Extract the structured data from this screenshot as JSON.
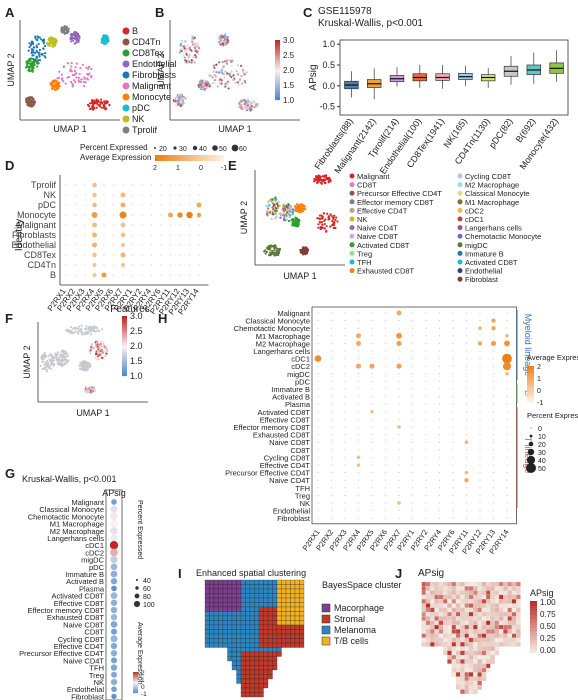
{
  "panels": {
    "A": {
      "letter": "A",
      "xlabel": "UMAP 1",
      "ylabel": "UMAP 2",
      "legend": [
        {
          "label": "B",
          "color": "#d62728"
        },
        {
          "label": "CD4Tn",
          "color": "#8c564b"
        },
        {
          "label": "CD8Tex",
          "color": "#2ca02c"
        },
        {
          "label": "Endothelial",
          "color": "#9467bd"
        },
        {
          "label": "Fibroblasts",
          "color": "#1f77b4"
        },
        {
          "label": "Malignant",
          "color": "#e377c2"
        },
        {
          "label": "Monocyte",
          "color": "#ff7f0e"
        },
        {
          "label": "pDC",
          "color": "#17becf"
        },
        {
          "label": "NK",
          "color": "#bcbd22"
        },
        {
          "label": "Tprolif",
          "color": "#7f7f7f"
        }
      ]
    },
    "B": {
      "letter": "B",
      "xlabel": "UMAP 1",
      "ylabel": "UMAP 2",
      "scale_ticks": [
        "3.0",
        "2.5",
        "2.0",
        "1.5",
        "1.0"
      ]
    },
    "C": {
      "letter": "C",
      "title": "GSE115978",
      "subtitle": "Kruskal-Wallis, p<0.001",
      "ylabel": "APsig",
      "ytick_labels": [
        "1.0",
        "0.5",
        "0.0",
        "-0.5"
      ]
    },
    "D": {
      "letter": "D",
      "ylabel": "Identity",
      "xlabel": "Features",
      "size_title": "Percent Expressed",
      "size_ticks": [
        "20",
        "30",
        "40",
        "50",
        "60"
      ],
      "color_title": "Average Expression",
      "color_ticks": [
        "2",
        "1",
        "0",
        "-1"
      ],
      "rows": [
        "Tprolif",
        "NK",
        "pDC",
        "Monocyte",
        "Malignant",
        "Fibroblasts",
        "Endothelial",
        "CD8Tex",
        "CD4Tn",
        "B"
      ],
      "cols": [
        "P2RX1",
        "P2RX2",
        "P2RX3",
        "P2RX4",
        "P2RX5",
        "P2RX6",
        "P2RX7",
        "P2RY1",
        "P2RY2",
        "P2RY4",
        "P2RY6",
        "P2RY11",
        "P2RY12",
        "P2RY13",
        "P2RY14"
      ]
    },
    "E": {
      "letter": "E",
      "xlabel": "UMAP 1",
      "ylabel": "UMAP 2",
      "legend_left": [
        {
          "label": "Malignant",
          "color": "#d62728"
        },
        {
          "label": "CD8T",
          "color": "#e377c2"
        },
        {
          "label": "Precursor Effective CD4T",
          "color": "#8c564b"
        },
        {
          "label": "Effector memory CD8T",
          "color": "#7f7f7f"
        },
        {
          "label": "Effective CD4T",
          "color": "#c49c94"
        },
        {
          "label": "NK",
          "color": "#bcbd22"
        },
        {
          "label": "Naive CD4T",
          "color": "#9467bd"
        },
        {
          "label": "Naive CD8T",
          "color": "#c5b0d5"
        },
        {
          "label": "Activated CD8T",
          "color": "#2ca02c"
        },
        {
          "label": "Treg",
          "color": "#98df8a"
        },
        {
          "label": "TFH",
          "color": "#17becf"
        },
        {
          "label": "Exhausted CD8T",
          "color": "#ff7f0e"
        }
      ],
      "legend_right": [
        {
          "label": "Cycling CD8T",
          "color": "#aec7e8"
        },
        {
          "label": "M2 Macrophage",
          "color": "#9edae5"
        },
        {
          "label": "Classical Monocyte",
          "color": "#dbdb8d"
        },
        {
          "label": "M1 Macrophage",
          "color": "#8c6d31"
        },
        {
          "label": "cDC2",
          "color": "#e7ba52"
        },
        {
          "label": "cDC1",
          "color": "#ad494a"
        },
        {
          "label": "Langerhans cells",
          "color": "#a55194"
        },
        {
          "label": "Chemotactic Monocyte",
          "color": "#6b6ecf"
        },
        {
          "label": "migDC",
          "color": "#637939"
        },
        {
          "label": "Immature B",
          "color": "#1f77b4"
        },
        {
          "label": "Activated CD8T",
          "color": "#17becf"
        },
        {
          "label": "Endothelial",
          "color": "#393b79"
        },
        {
          "label": "Fibroblast",
          "color": "#843c39"
        }
      ]
    },
    "F": {
      "letter": "F",
      "xlabel": "UMAP 1",
      "ylabel": "UMAP 2",
      "scale_ticks": [
        "3.0",
        "2.5",
        "2.0",
        "1.5",
        "1.0"
      ]
    },
    "G": {
      "letter": "G",
      "title": "Kruskal-Wallis, p<0.001",
      "col_label": "APsig",
      "size_title": "Percent Expressed",
      "size_ticks": [
        "40",
        "60",
        "80",
        "100"
      ],
      "color_title": "Average Expression",
      "color_ticks": [
        "2",
        "1",
        "0",
        "-1"
      ]
    },
    "H": {
      "letter": "H",
      "cols": [
        "P2RX1",
        "P2RX2",
        "P2RX3",
        "P2RX4",
        "P2RX5",
        "P2RX6",
        "P2RX7",
        "P2RY1",
        "P2RY2",
        "P2RY4",
        "P2RY6",
        "P2RY11",
        "P2RY12",
        "P2RY13",
        "P2RY14"
      ],
      "group_myeloid": "Myeloid lineage",
      "group_b": "B",
      "group_t": "T lineage",
      "color_title": "Average Expression",
      "color_ticks": [
        "2",
        "1",
        "0",
        "-1"
      ],
      "size_title": "Percent Expressed",
      "size_ticks": [
        "0",
        "10",
        "20",
        "30",
        "40",
        "50"
      ]
    },
    "I": {
      "letter": "I",
      "title": "Enhanced spatial clustering",
      "legend_title": "BayesSpace cluster",
      "legend": [
        {
          "label": "Macorphage",
          "color": "#7b3f8c"
        },
        {
          "label": "Stromal",
          "color": "#c0392b"
        },
        {
          "label": "Melanoma",
          "color": "#2e86c1"
        },
        {
          "label": "T/B cells",
          "color": "#f0b323"
        }
      ]
    },
    "J": {
      "letter": "J",
      "title": "APsig",
      "scale_title": "APsig",
      "scale_ticks": [
        "1.00",
        "0.75",
        "0.50",
        "0.25",
        "0.00"
      ]
    }
  },
  "chart_data": [
    {
      "type": "box",
      "panel": "C",
      "title": "GSE115978",
      "subtitle": "Kruskal-Wallis, p<0.001",
      "ylabel": "APsig",
      "ylim": [
        -0.7,
        1.1
      ],
      "categories": [
        "Fibroblasts(88)",
        "Malignant(2142)",
        "Tprolif(214)",
        "Endothelial(100)",
        "CD8Tex(1941)",
        "NK(165)",
        "CD4Tn(1130)",
        "pDC(82)",
        "B(692)",
        "Monocyte(432)"
      ],
      "colors": [
        "#4a7fb0",
        "#f0a040",
        "#c9a0dc",
        "#e8693e",
        "#f2a7b5",
        "#9ec7e8",
        "#d9e27a",
        "#c8c8c8",
        "#62c6c6",
        "#8cc63f"
      ],
      "median": [
        0.02,
        0.05,
        0.17,
        0.2,
        0.2,
        0.22,
        0.2,
        0.35,
        0.38,
        0.42
      ],
      "q1": [
        -0.07,
        -0.04,
        0.1,
        0.12,
        0.13,
        0.15,
        0.12,
        0.23,
        0.27,
        0.3
      ],
      "q3": [
        0.11,
        0.15,
        0.25,
        0.29,
        0.29,
        0.3,
        0.27,
        0.47,
        0.5,
        0.55
      ],
      "whisker_low": [
        -0.28,
        -0.32,
        -0.02,
        -0.05,
        -0.07,
        0.0,
        -0.05,
        0.03,
        0.05,
        0.1
      ],
      "whisker_high": [
        0.35,
        0.42,
        0.45,
        0.5,
        0.5,
        0.48,
        0.43,
        0.72,
        0.8,
        0.85
      ]
    },
    {
      "type": "dotplot",
      "panel": "D",
      "rows": [
        "Tprolif",
        "NK",
        "pDC",
        "Monocyte",
        "Malignant",
        "Fibroblasts",
        "Endothelial",
        "CD8Tex",
        "CD4Tn",
        "B"
      ],
      "cols": [
        "P2RX1",
        "P2RX2",
        "P2RX3",
        "P2RX4",
        "P2RX5",
        "P2RX6",
        "P2RX7",
        "P2RY1",
        "P2RY2",
        "P2RY4",
        "P2RY6",
        "P2RY11",
        "P2RY12",
        "P2RY13",
        "P2RY14"
      ],
      "dots": [
        {
          "row": "Monocyte",
          "col": "P2RX4",
          "pct": 40,
          "avg": 1.2
        },
        {
          "row": "Monocyte",
          "col": "P2RX7",
          "pct": 50,
          "avg": 1.8
        },
        {
          "row": "Monocyte",
          "col": "P2RY11",
          "pct": 30,
          "avg": 1.0
        },
        {
          "row": "Monocyte",
          "col": "P2RY12",
          "pct": 35,
          "avg": 1.6
        },
        {
          "row": "Monocyte",
          "col": "P2RY13",
          "pct": 45,
          "avg": 2.0
        },
        {
          "row": "Monocyte",
          "col": "P2RY14",
          "pct": 25,
          "avg": 1.2
        },
        {
          "row": "pDC",
          "col": "P2RY14",
          "pct": 30,
          "avg": 1.0
        },
        {
          "row": "pDC",
          "col": "P2RX4",
          "pct": 25,
          "avg": 0.5
        },
        {
          "row": "pDC",
          "col": "P2RX7",
          "pct": 30,
          "avg": 0.8
        },
        {
          "row": "Malignant",
          "col": "P2RX4",
          "pct": 30,
          "avg": 0.4
        },
        {
          "row": "Malignant",
          "col": "P2RX7",
          "pct": 30,
          "avg": 0.3
        },
        {
          "row": "Fibroblasts",
          "col": "P2RX4",
          "pct": 30,
          "avg": 0.6
        },
        {
          "row": "Fibroblasts",
          "col": "P2RX7",
          "pct": 25,
          "avg": 0.4
        },
        {
          "row": "Endothelial",
          "col": "P2RX4",
          "pct": 30,
          "avg": 0.7
        },
        {
          "row": "Endothelial",
          "col": "P2RX7",
          "pct": 20,
          "avg": 0.2
        },
        {
          "row": "CD8Tex",
          "col": "P2RX4",
          "pct": 25,
          "avg": 0.3
        },
        {
          "row": "CD8Tex",
          "col": "P2RX7",
          "pct": 30,
          "avg": 0.6
        },
        {
          "row": "CD4Tn",
          "col": "P2RX7",
          "pct": 20,
          "avg": 0.3
        },
        {
          "row": "CD4Tn",
          "col": "P2RX4",
          "pct": 20,
          "avg": 0.2
        },
        {
          "row": "Tprolif",
          "col": "P2RX4",
          "pct": 25,
          "avg": 0.4
        },
        {
          "row": "NK",
          "col": "P2RX7",
          "pct": 30,
          "avg": 0.5
        },
        {
          "row": "NK",
          "col": "P2RX4",
          "pct": 25,
          "avg": 0.3
        },
        {
          "row": "B",
          "col": "P2RX5",
          "pct": 30,
          "avg": 1.3
        },
        {
          "row": "B",
          "col": "P2RX4",
          "pct": 20,
          "avg": 0.2
        }
      ]
    },
    {
      "type": "dotplot",
      "panel": "G",
      "rows": [
        "Malignant",
        "Classical Monocyte",
        "Chemotactic Monocyte",
        "M1 Macrophage",
        "M2 Macrophage",
        "Langerhans cells",
        "cDC1",
        "cDC2",
        "migDC",
        "pDC",
        "Immature B",
        "Activated B",
        "Plasma",
        "Activated CD8T",
        "Effective CD8T",
        "Effector memory CD8T",
        "Exhausted CD8T",
        "Naive CD8T",
        "CD8T",
        "Cycling CD8T",
        "Effective CD4T",
        "Precursor Effective CD4T",
        "Naive CD4T",
        "TFH",
        "Treg",
        "NK",
        "Endothelial",
        "Fibroblast"
      ],
      "cols": [
        "APsig"
      ],
      "pct": [
        55,
        75,
        80,
        85,
        80,
        75,
        95,
        85,
        75,
        70,
        70,
        65,
        55,
        70,
        65,
        65,
        65,
        70,
        60,
        75,
        65,
        65,
        60,
        65,
        60,
        65,
        55,
        50
      ],
      "avg": [
        -0.6,
        0.3,
        0.4,
        0.5,
        0.3,
        0.4,
        2.0,
        1.0,
        0.0,
        -0.3,
        -0.4,
        -0.5,
        -0.8,
        -0.3,
        -0.4,
        -0.4,
        -0.3,
        -0.5,
        -0.6,
        -0.3,
        -0.5,
        -0.4,
        -0.6,
        -0.5,
        -0.5,
        -0.4,
        -0.6,
        -0.8
      ]
    },
    {
      "type": "dotplot",
      "panel": "H",
      "rows": [
        "Malignant",
        "Classical Monocyte",
        "Chemotactic Monocyte",
        "M1 Macrophage",
        "M2 Macrophage",
        "Langerhans cells",
        "cDC1",
        "cDC2",
        "migDC",
        "pDC",
        "Immature B",
        "Activated B",
        "Plasma",
        "Activated CD8T",
        "Effective CD8T",
        "Effector memory CD8T",
        "Exhausted CD8T",
        "Naive CD8T",
        "CD8T",
        "Cycling CD8T",
        "Effective CD4T",
        "Precursor Effective CD4T",
        "Naive CD4T",
        "TFH",
        "Treg",
        "NK",
        "Endothelial",
        "Fibroblast"
      ],
      "cols": [
        "P2RX1",
        "P2RX2",
        "P2RX3",
        "P2RX4",
        "P2RX5",
        "P2RX6",
        "P2RX7",
        "P2RY1",
        "P2RY2",
        "P2RY4",
        "P2RY6",
        "P2RY11",
        "P2RY12",
        "P2RY13",
        "P2RY14"
      ],
      "dots": [
        {
          "row": "Malignant",
          "col": "P2RX7",
          "pct": 20,
          "avg": 1.0
        },
        {
          "row": "Classical Monocyte",
          "col": "P2RY13",
          "pct": 15,
          "avg": 1.2
        },
        {
          "row": "Chemotactic Monocyte",
          "col": "P2RY13",
          "pct": 15,
          "avg": 1.1
        },
        {
          "row": "Chemotactic Monocyte",
          "col": "P2RY12",
          "pct": 10,
          "avg": 0.9
        },
        {
          "row": "M1 Macrophage",
          "col": "P2RX4",
          "pct": 20,
          "avg": 1.0
        },
        {
          "row": "M1 Macrophage",
          "col": "P2RX7",
          "pct": 25,
          "avg": 1.5
        },
        {
          "row": "M1 Macrophage",
          "col": "P2RY14",
          "pct": 10,
          "avg": 0.7
        },
        {
          "row": "M2 Macrophage",
          "col": "P2RX4",
          "pct": 20,
          "avg": 1.0
        },
        {
          "row": "M2 Macrophage",
          "col": "P2RX7",
          "pct": 20,
          "avg": 1.3
        },
        {
          "row": "M2 Macrophage",
          "col": "P2RY12",
          "pct": 15,
          "avg": 1.2
        },
        {
          "row": "M2 Macrophage",
          "col": "P2RY13",
          "pct": 20,
          "avg": 1.4
        },
        {
          "row": "M2 Macrophage",
          "col": "P2RY14",
          "pct": 25,
          "avg": 1.6
        },
        {
          "row": "cDC1",
          "col": "P2RX1",
          "pct": 30,
          "avg": 1.8
        },
        {
          "row": "cDC1",
          "col": "P2RY14",
          "pct": 50,
          "avg": 2.2
        },
        {
          "row": "cDC2",
          "col": "P2RX4",
          "pct": 20,
          "avg": 1.1
        },
        {
          "row": "cDC2",
          "col": "P2RX5",
          "pct": 20,
          "avg": 1.2
        },
        {
          "row": "cDC2",
          "col": "P2RX7",
          "pct": 20,
          "avg": 1.3
        },
        {
          "row": "cDC2",
          "col": "P2RY14",
          "pct": 40,
          "avg": 1.8
        },
        {
          "row": "migDC",
          "col": "P2RY14",
          "pct": 10,
          "avg": 0.6
        },
        {
          "row": "Activated CD8T",
          "col": "P2RX5",
          "pct": 10,
          "avg": 0.5
        },
        {
          "row": "Effector memory CD8T",
          "col": "P2RX7",
          "pct": 10,
          "avg": 0.6
        },
        {
          "row": "Naive CD8T",
          "col": "P2RY11",
          "pct": 10,
          "avg": 0.8
        },
        {
          "row": "Cycling CD8T",
          "col": "P2RX4",
          "pct": 10,
          "avg": 0.6
        },
        {
          "row": "Effective CD4T",
          "col": "P2RX4",
          "pct": 10,
          "avg": 0.5
        },
        {
          "row": "Precursor Effective CD4T",
          "col": "P2RY11",
          "pct": 10,
          "avg": 0.7
        },
        {
          "row": "Naive CD4T",
          "col": "P2RY11",
          "pct": 15,
          "avg": 1.0
        },
        {
          "row": "NK",
          "col": "P2RX7",
          "pct": 10,
          "avg": 0.6
        }
      ]
    },
    {
      "type": "scatter",
      "panel": "A",
      "xlabel": "UMAP 1",
      "ylabel": "UMAP 2",
      "series": [
        {
          "name": "B",
          "x": [
            7.5,
            8.0,
            7.8,
            8.2
          ],
          "y": [
            -6.0,
            -5.8,
            -6.3,
            -6.1
          ]
        },
        {
          "name": "CD4Tn",
          "x": [
            -8.5,
            -8.0,
            -8.2
          ],
          "y": [
            -5.0,
            -5.3,
            -4.7
          ]
        },
        {
          "name": "CD8Tex",
          "x": [
            -7.5,
            -7.0,
            -6.8
          ],
          "y": [
            -4.0,
            -3.5,
            -3.8
          ]
        },
        {
          "name": "Endothelial",
          "x": [
            3.0,
            3.3,
            3.1
          ],
          "y": [
            5.5,
            5.8,
            5.2
          ]
        },
        {
          "name": "Fibroblasts",
          "x": [
            -6.0,
            -5.5,
            -5.0,
            -4.5,
            -5.2
          ],
          "y": [
            1.0,
            2.0,
            0.5,
            1.5,
            0.0
          ]
        },
        {
          "name": "Malignant",
          "x": [
            2.0,
            3.0,
            4.0,
            5.0,
            6.0,
            4.5,
            3.5
          ],
          "y": [
            -1.0,
            0.0,
            -2.0,
            1.0,
            -1.5,
            2.0,
            -3.0
          ]
        },
        {
          "name": "Monocyte",
          "x": [
            -3.0,
            -2.5,
            -2.8
          ],
          "y": [
            -2.0,
            -1.8,
            -2.4
          ]
        },
        {
          "name": "pDC",
          "x": [
            8.0,
            8.5
          ],
          "y": [
            5.0,
            5.5
          ]
        },
        {
          "name": "NK",
          "x": [
            -2.0,
            -1.5
          ],
          "y": [
            4.5,
            4.0
          ]
        },
        {
          "name": "Tprolif",
          "x": [
            1.0,
            1.5
          ],
          "y": [
            6.0,
            6.3
          ]
        }
      ]
    }
  ]
}
